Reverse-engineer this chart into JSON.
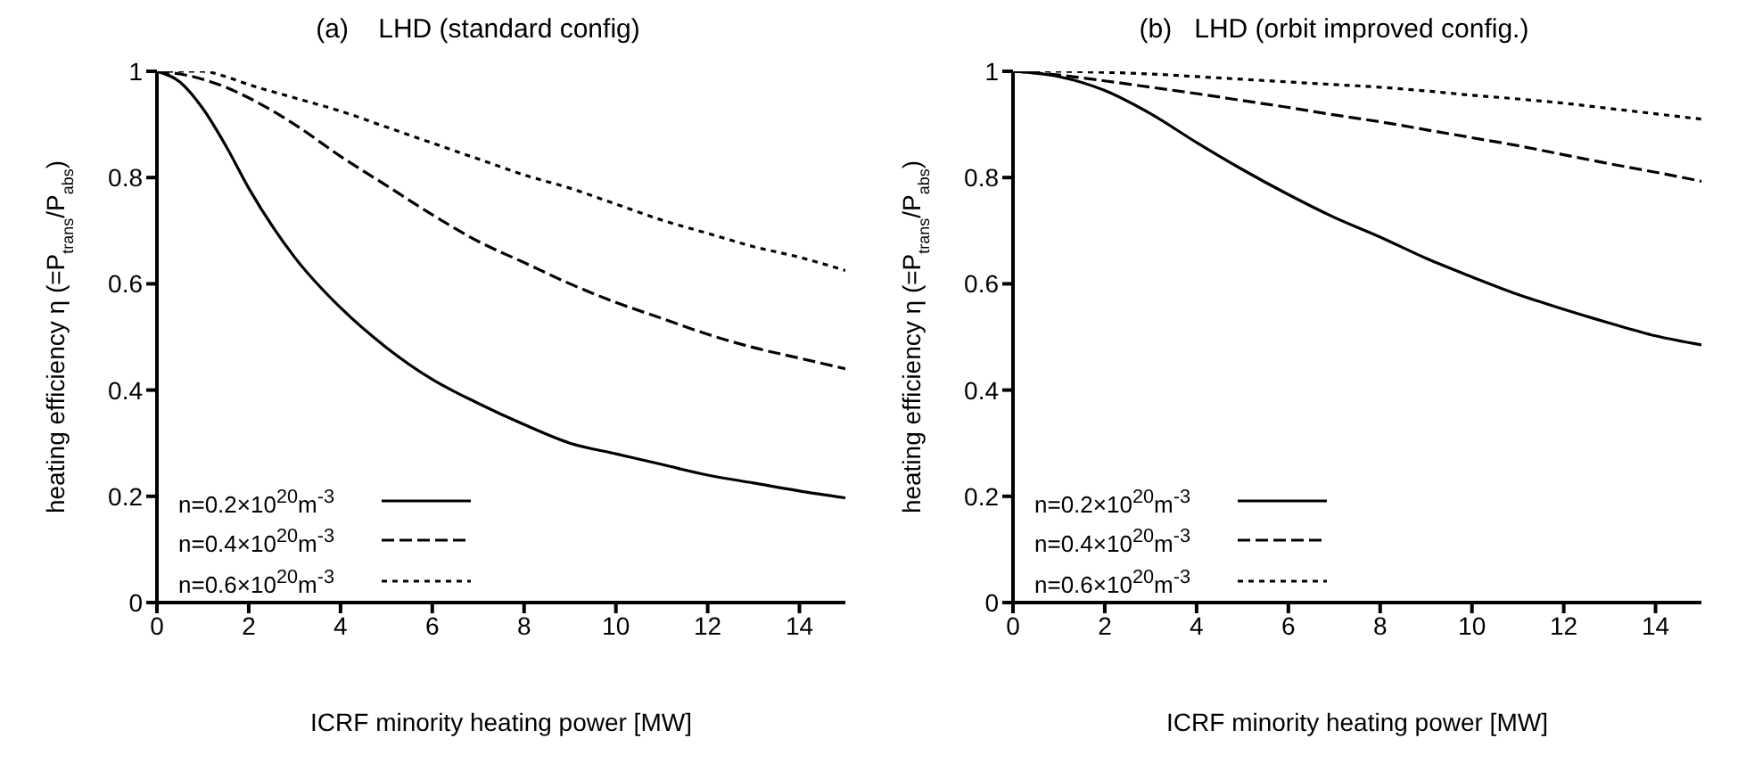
{
  "chart_data": [
    {
      "type": "line",
      "title": "(a)    LHD (standard config)",
      "xlabel": "ICRF minority heating power [MW]",
      "ylabel": "heating efficiency η (=P$_{trans}$/P$_{abs}$)",
      "x": [
        0,
        0.5,
        1,
        1.5,
        2,
        3,
        4,
        5,
        6,
        7,
        8,
        9,
        10,
        11,
        12,
        13,
        14,
        15
      ],
      "xlim": [
        0,
        15
      ],
      "xticks": [
        0,
        2,
        4,
        6,
        8,
        10,
        12,
        14
      ],
      "ylim": [
        0,
        1
      ],
      "yticks": [
        0,
        0.2,
        0.4,
        0.6,
        0.8,
        1
      ],
      "legend": "bottom left",
      "marker": "none",
      "series": [
        {
          "name": "n=0.2×10$^{20}$m$^{-3}$",
          "color": "#000000",
          "line_style": "solid",
          "values": [
            1,
            0.98,
            0.93,
            0.86,
            0.78,
            0.65,
            0.555,
            0.48,
            0.42,
            0.375,
            0.335,
            0.3,
            0.28,
            0.26,
            0.24,
            0.225,
            0.21,
            0.197
          ]
        },
        {
          "name": "n=0.4×10$^{20}$m$^{-3}$",
          "color": "#000000",
          "line_style": "dashed",
          "values": [
            1,
            0.995,
            0.985,
            0.97,
            0.95,
            0.9,
            0.84,
            0.785,
            0.73,
            0.68,
            0.64,
            0.6,
            0.565,
            0.535,
            0.505,
            0.48,
            0.46,
            0.44
          ]
        },
        {
          "name": "n=0.6×10$^{20}$m$^{-3}$",
          "color": "#000000",
          "line_style": "dotted",
          "values": [
            1,
            1,
            1,
            0.99,
            0.975,
            0.95,
            0.925,
            0.895,
            0.865,
            0.835,
            0.805,
            0.78,
            0.75,
            0.72,
            0.695,
            0.67,
            0.65,
            0.625
          ]
        }
      ]
    },
    {
      "type": "line",
      "title": "(b)   LHD (orbit improved config.)",
      "xlabel": "ICRF minority heating power [MW]",
      "ylabel": "heating efficiency η (=P$_{trans}$/P$_{abs}$)",
      "x": [
        0,
        1,
        2,
        3,
        4,
        5,
        6,
        7,
        8,
        9,
        10,
        11,
        12,
        13,
        14,
        15
      ],
      "xlim": [
        0,
        15
      ],
      "xticks": [
        0,
        2,
        4,
        6,
        8,
        10,
        12,
        14
      ],
      "ylim": [
        0,
        1
      ],
      "yticks": [
        0,
        0.2,
        0.4,
        0.6,
        0.8,
        1
      ],
      "legend": "bottom left",
      "marker": "none",
      "series": [
        {
          "name": "n=0.2×10$^{20}$m$^{-3}$",
          "color": "#000000",
          "line_style": "solid",
          "values": [
            1,
            0.99,
            0.964,
            0.92,
            0.866,
            0.815,
            0.768,
            0.725,
            0.688,
            0.648,
            0.613,
            0.58,
            0.552,
            0.526,
            0.502,
            0.485
          ]
        },
        {
          "name": "n=0.4×10$^{20}$m$^{-3}$",
          "color": "#000000",
          "line_style": "dashed",
          "values": [
            1,
            0.993,
            0.982,
            0.97,
            0.958,
            0.945,
            0.932,
            0.918,
            0.905,
            0.89,
            0.875,
            0.86,
            0.843,
            0.826,
            0.81,
            0.793
          ]
        },
        {
          "name": "n=0.6×10$^{20}$m$^{-3}$",
          "color": "#000000",
          "line_style": "dotted",
          "values": [
            1,
            1,
            0.998,
            0.995,
            0.99,
            0.985,
            0.98,
            0.975,
            0.97,
            0.963,
            0.955,
            0.948,
            0.94,
            0.93,
            0.92,
            0.91
          ]
        }
      ]
    }
  ]
}
